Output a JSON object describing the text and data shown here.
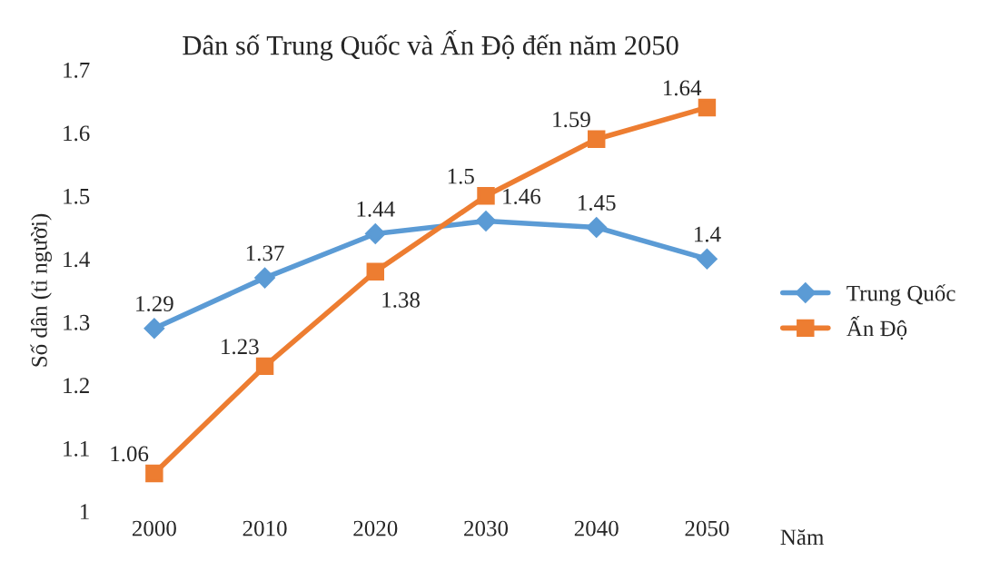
{
  "chart_data": {
    "type": "line",
    "title": "Dân số Trung Quốc và Ấn Độ đến năm 2050",
    "xlabel": "Năm",
    "ylabel": "Số dân (tỉ người)",
    "categories": [
      "2000",
      "2010",
      "2020",
      "2030",
      "2040",
      "2050"
    ],
    "series": [
      {
        "name": "Trung Quốc",
        "color": "#5b9bd5",
        "marker": "diamond",
        "values": [
          1.29,
          1.37,
          1.44,
          1.46,
          1.45,
          1.4
        ]
      },
      {
        "name": "Ấn Độ",
        "color": "#ed7d31",
        "marker": "square",
        "values": [
          1.06,
          1.23,
          1.38,
          1.5,
          1.59,
          1.64
        ]
      }
    ],
    "ylim": [
      1,
      1.7
    ],
    "yticks": [
      1,
      1.1,
      1.2,
      1.3,
      1.4,
      1.5,
      1.6,
      1.7
    ],
    "data_labels": true,
    "legend": "right",
    "grid": false,
    "line_style": "solid"
  }
}
